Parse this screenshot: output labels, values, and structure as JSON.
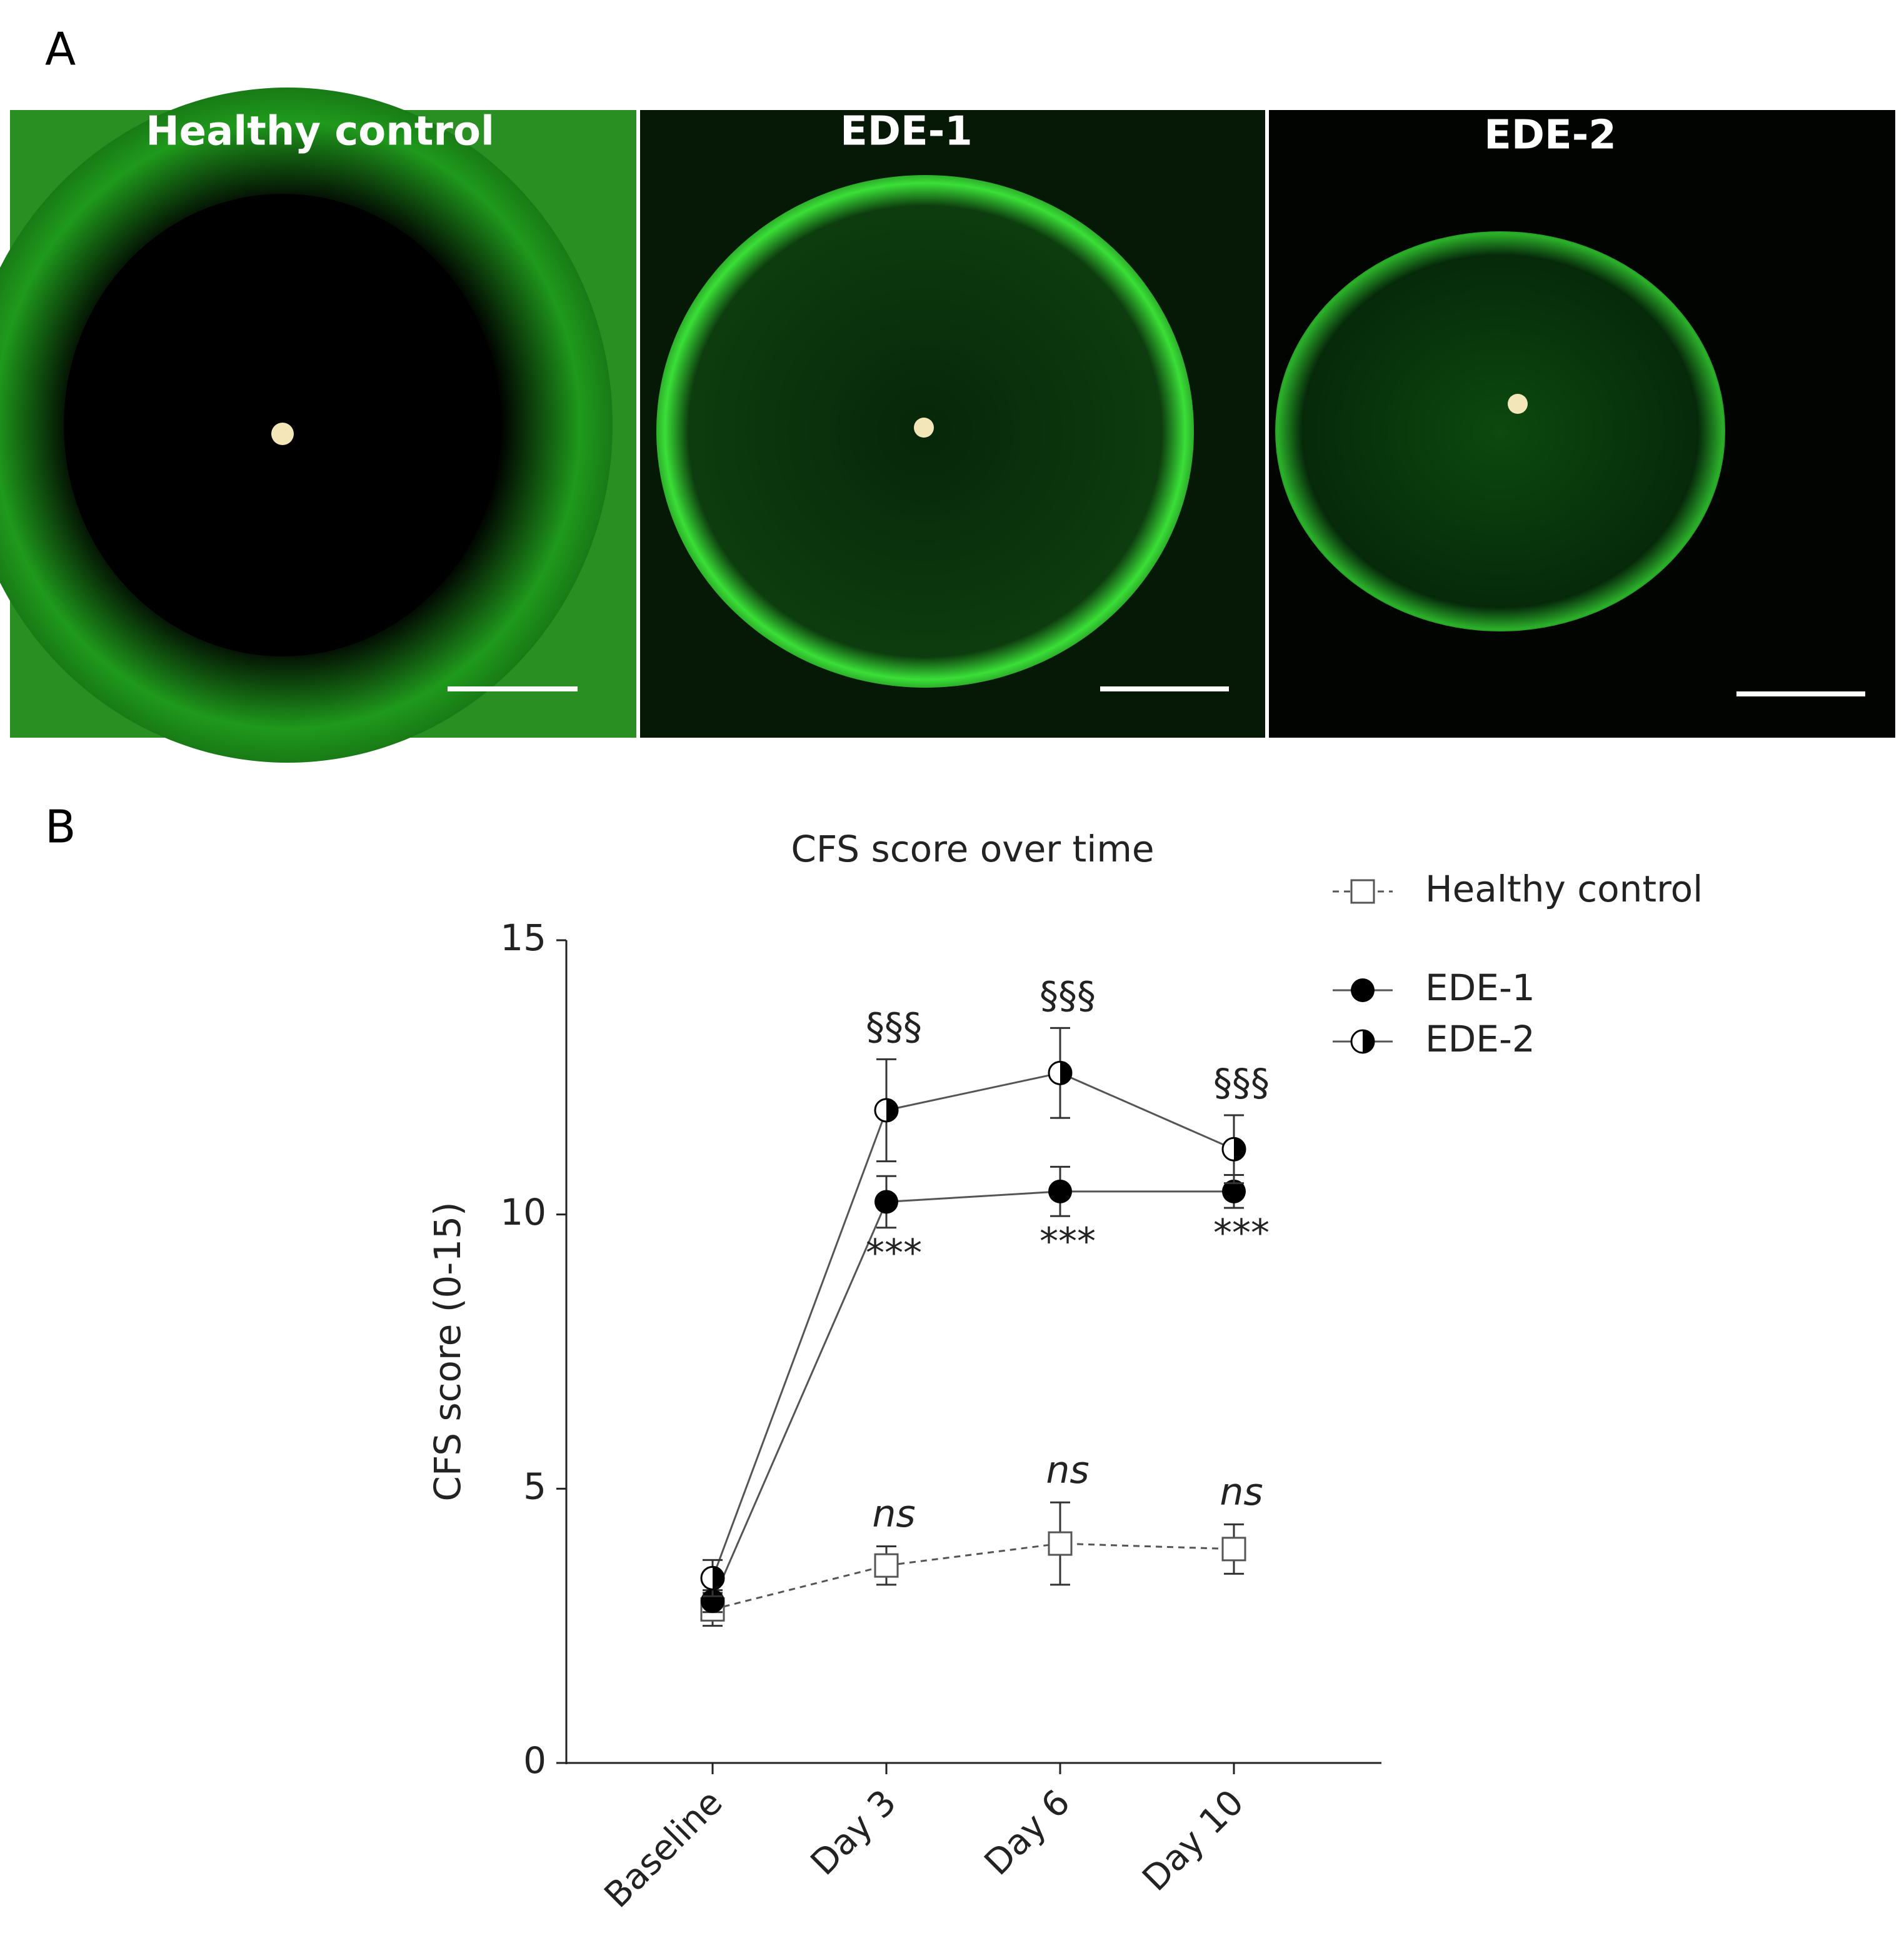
{
  "panel_a": {
    "label": "A",
    "images": [
      {
        "label": "Healthy control"
      },
      {
        "label": "EDE-1"
      },
      {
        "label": "EDE-2"
      }
    ]
  },
  "panel_b": {
    "label": "B"
  },
  "chart_data": {
    "type": "line",
    "title": "CFS score over time",
    "y_label": "CFS score (0-15)",
    "categories": [
      "Baseline",
      "Day 3",
      "Day 6",
      "Day 10"
    ],
    "ylim": [
      0,
      15
    ],
    "yticks": [
      0,
      5,
      10,
      15
    ],
    "series": [
      {
        "name": "Healthy control",
        "color": "#555555",
        "marker": "open-square",
        "dashed": true,
        "values": [
          2.8,
          3.6,
          4.0,
          3.9
        ],
        "errors": [
          0.3,
          0.35,
          0.75,
          0.45
        ]
      },
      {
        "name": "EDE-1",
        "color": "#000000",
        "marker": "filled-circle",
        "dashed": false,
        "values": [
          2.95,
          10.23,
          10.42,
          10.42
        ],
        "errors": [
          0.2,
          0.47,
          0.45,
          0.3
        ]
      },
      {
        "name": "EDE-2",
        "color": "#000000",
        "marker": "half-circle",
        "dashed": false,
        "values": [
          3.37,
          11.9,
          12.58,
          11.19
        ],
        "errors": [
          0.33,
          0.93,
          0.82,
          0.62
        ]
      }
    ],
    "annotations": [
      {
        "text": "§§§",
        "x": "Day 3",
        "series": "EDE-2",
        "position": "above"
      },
      {
        "text": "§§§",
        "x": "Day 6",
        "series": "EDE-2",
        "position": "above"
      },
      {
        "text": "§§§",
        "x": "Day 10",
        "series": "EDE-2",
        "position": "above"
      },
      {
        "text": "***",
        "x": "Day 3",
        "series": "EDE-1",
        "position": "below"
      },
      {
        "text": "***",
        "x": "Day 6",
        "series": "EDE-1",
        "position": "below"
      },
      {
        "text": "***",
        "x": "Day 10",
        "series": "EDE-1",
        "position": "below"
      },
      {
        "text": "ns",
        "x": "Day 3",
        "series": "Healthy control",
        "position": "above"
      },
      {
        "text": "ns",
        "x": "Day 6",
        "series": "Healthy control",
        "position": "above"
      },
      {
        "text": "ns",
        "x": "Day 10",
        "series": "Healthy control",
        "position": "above"
      }
    ]
  }
}
